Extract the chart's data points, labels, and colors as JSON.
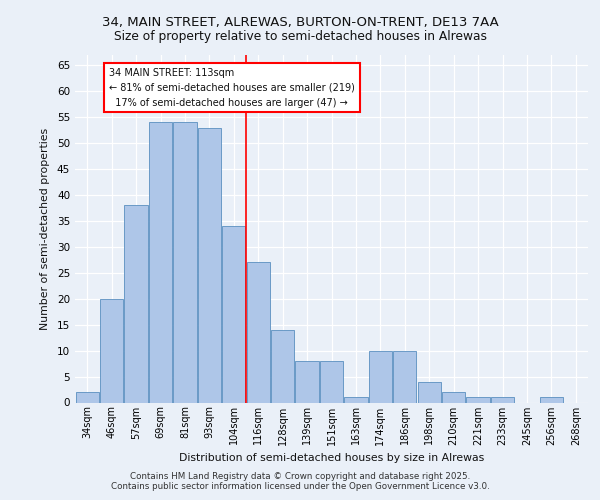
{
  "title1": "34, MAIN STREET, ALREWAS, BURTON-ON-TRENT, DE13 7AA",
  "title2": "Size of property relative to semi-detached houses in Alrewas",
  "xlabel": "Distribution of semi-detached houses by size in Alrewas",
  "ylabel": "Number of semi-detached properties",
  "categories": [
    "34sqm",
    "46sqm",
    "57sqm",
    "69sqm",
    "81sqm",
    "93sqm",
    "104sqm",
    "116sqm",
    "128sqm",
    "139sqm",
    "151sqm",
    "163sqm",
    "174sqm",
    "186sqm",
    "198sqm",
    "210sqm",
    "221sqm",
    "233sqm",
    "245sqm",
    "256sqm",
    "268sqm"
  ],
  "values": [
    2,
    20,
    38,
    54,
    54,
    53,
    34,
    27,
    14,
    8,
    8,
    1,
    10,
    10,
    4,
    2,
    1,
    1,
    0,
    1,
    0
  ],
  "bar_color": "#aec6e8",
  "bar_edge_color": "#5a8fc0",
  "marker_label": "34 MAIN STREET: 113sqm",
  "pct_smaller": "81% of semi-detached houses are smaller (219)",
  "pct_larger": "17% of semi-detached houses are larger (47)",
  "ylim": [
    0,
    67
  ],
  "yticks": [
    0,
    5,
    10,
    15,
    20,
    25,
    30,
    35,
    40,
    45,
    50,
    55,
    60,
    65
  ],
  "bg_color": "#eaf0f8",
  "footer1": "Contains HM Land Registry data © Crown copyright and database right 2025.",
  "footer2": "Contains public sector information licensed under the Open Government Licence v3.0."
}
